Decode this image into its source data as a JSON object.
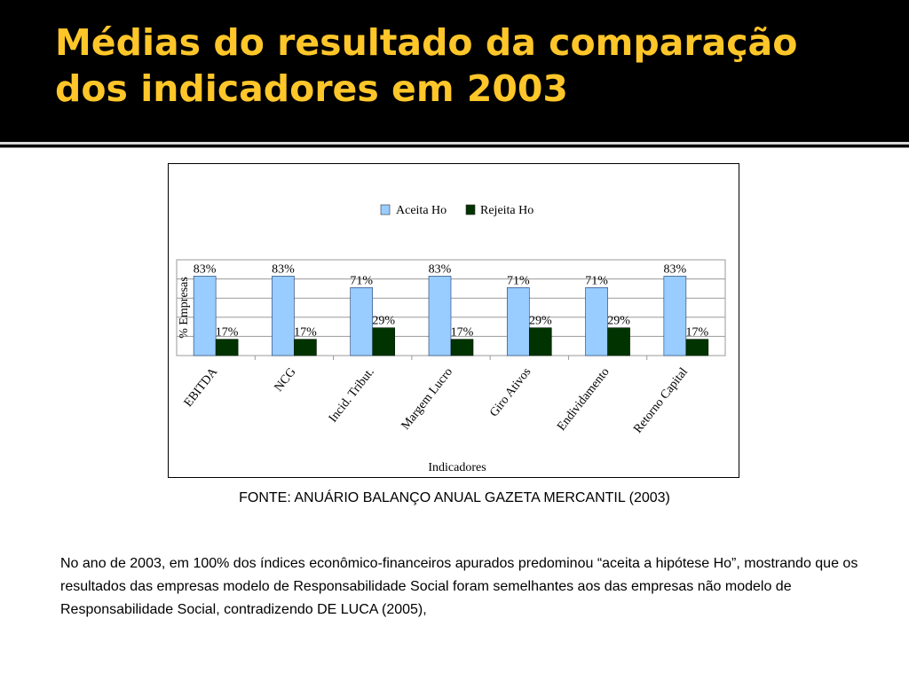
{
  "slide": {
    "title_lines": [
      "Médias do resultado da comparação",
      "dos indicadores em 2003"
    ],
    "source": "FONTE: ANUÁRIO BALANÇO ANUAL GAZETA MERCANTIL (2003)",
    "body": "No ano de 2003, em 100% dos índices econômico-financeiros apurados predominou “aceita a hipótese Ho”, mostrando que os resultados das empresas modelo de Responsabilidade Social foram semelhantes aos das empresas não modelo de Responsabilidade Social, contradizendo DE LUCA (2005),"
  },
  "colors": {
    "title": "#FFC629",
    "aceita": "#99CCFF",
    "rejeita": "#003300"
  },
  "chart_data": {
    "type": "bar",
    "categories": [
      "EBITDA",
      "NCG",
      "Incid. Tribut.",
      "Margem Lucro",
      "Giro Ativos",
      "Endividamento",
      "Retorno Capital"
    ],
    "series": [
      {
        "name": "Aceita Ho",
        "values": [
          83,
          83,
          71,
          83,
          71,
          71,
          83
        ],
        "labels": [
          "83%",
          "83%",
          "71%",
          "83%",
          "71%",
          "71%",
          "83%"
        ]
      },
      {
        "name": "Rejeita Ho",
        "values": [
          17,
          17,
          29,
          17,
          29,
          29,
          17
        ],
        "labels": [
          "17%",
          "17%",
          "29%",
          "17%",
          "29%",
          "29%",
          "17%"
        ]
      }
    ],
    "xlabel": "Indicadores",
    "ylabel": "% Empresas",
    "ylim": [
      0,
      100
    ],
    "grid": true,
    "legend": "top"
  }
}
